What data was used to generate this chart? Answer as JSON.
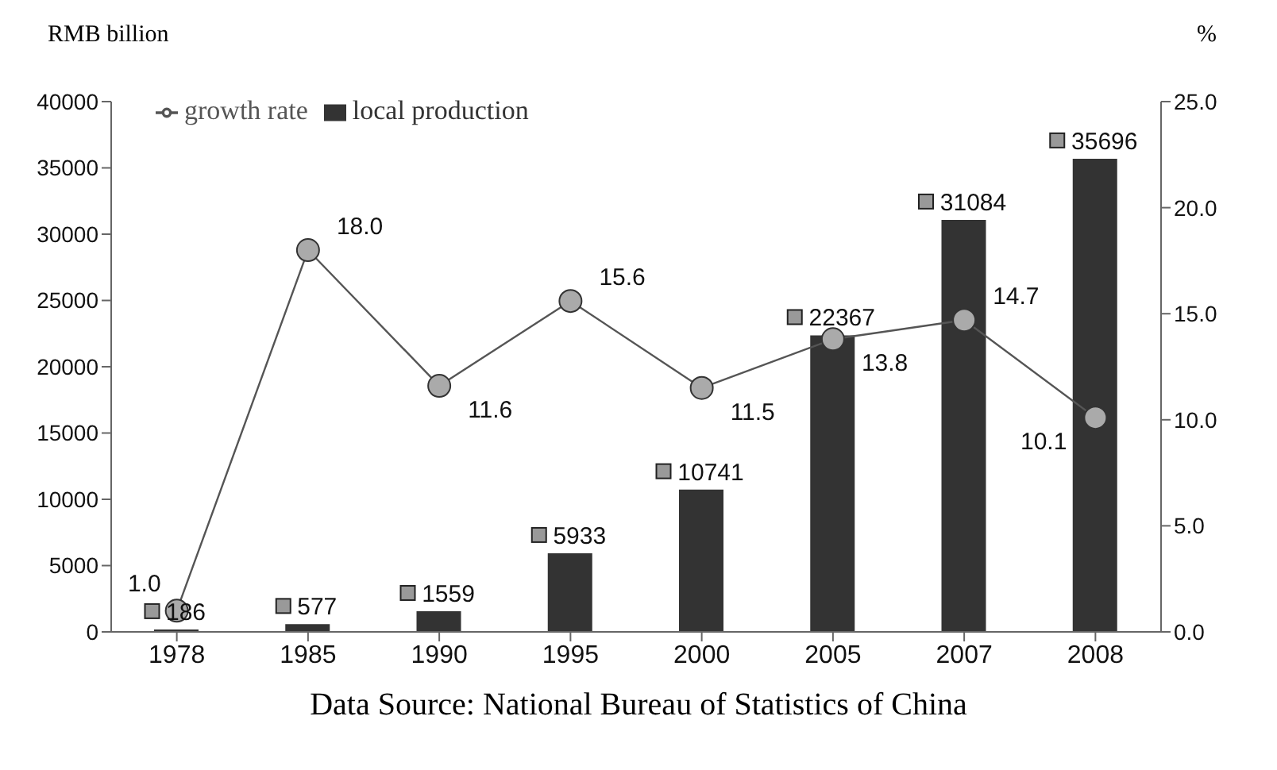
{
  "chart_data": {
    "type": "bar",
    "ylabel": "RMB billion",
    "y2label": "%",
    "categories": [
      "1978",
      "1985",
      "1990",
      "1995",
      "2000",
      "2005",
      "2007",
      "2008"
    ],
    "series": [
      {
        "name": "local production",
        "color": "#333333",
        "values": [
          186,
          577,
          1559,
          5933,
          10741,
          22367,
          31084,
          35696
        ],
        "value_labels": [
          "186",
          "577",
          "1559",
          "5933",
          "10741",
          "22367",
          "31084",
          "35696"
        ]
      },
      {
        "name": "growth rate",
        "type": "line",
        "axis": "y2",
        "color": "#555555",
        "values": [
          1.0,
          18.0,
          11.6,
          15.6,
          11.5,
          13.8,
          14.7,
          10.1
        ],
        "value_labels": [
          "1.0",
          "18.0",
          "11.6",
          "15.6",
          "11.5",
          "13.8",
          "14.7",
          "10.1"
        ]
      }
    ],
    "ylim": [
      0,
      40000
    ],
    "yticks": [
      0,
      5000,
      10000,
      15000,
      20000,
      25000,
      30000,
      35000,
      40000
    ],
    "y2lim": [
      0,
      25
    ],
    "y2ticks": [
      {
        "value": 0,
        "label": "0.0"
      },
      {
        "value": 5,
        "label": "5.0"
      },
      {
        "value": 10,
        "label": "10.0"
      },
      {
        "value": 15,
        "label": "15.0"
      },
      {
        "value": 20,
        "label": "20.0"
      },
      {
        "value": 25,
        "label": "25.0"
      }
    ],
    "marker": "circle",
    "legend": "top left",
    "grid": false,
    "annotations": [
      "Data Source: National Bureau of Statistics of China"
    ]
  }
}
